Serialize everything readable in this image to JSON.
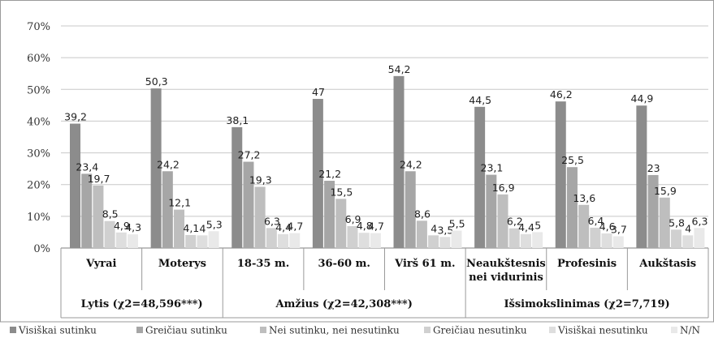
{
  "chart_data": {
    "type": "bar",
    "y_unit": "%",
    "ylim": [
      0,
      70
    ],
    "y_ticks": [
      "0%",
      "10%",
      "20%",
      "30%",
      "40%",
      "50%",
      "60%",
      "70%"
    ],
    "grid": true,
    "legend_position": "bottom",
    "categories": [
      "Vyrai",
      "Moterys",
      "18-35 m.",
      "36-60 m.",
      "Virš 61 m.",
      "Neaukštesnis nei vidurinis",
      "Profesinis",
      "Aukštasis"
    ],
    "category_lines": [
      [
        "Vyrai"
      ],
      [
        "Moterys"
      ],
      [
        "18-35 m."
      ],
      [
        "36-60 m."
      ],
      [
        "Virš 61 m."
      ],
      [
        "Neaukštesnis",
        "nei vidurinis"
      ],
      [
        "Profesinis"
      ],
      [
        "Aukštasis"
      ]
    ],
    "groups": [
      {
        "label": "Lytis (χ2=48,596***)",
        "span": [
          0,
          1
        ]
      },
      {
        "label": "Amžius (χ2=42,308***)",
        "span": [
          2,
          4
        ]
      },
      {
        "label": "Išsimokslinimas (χ2=7,719)",
        "span": [
          5,
          7
        ]
      }
    ],
    "series": [
      {
        "name": "Visiškai sutinku",
        "color": "#8c8c8c",
        "values": [
          39.2,
          50.3,
          38.1,
          47,
          54.2,
          44.5,
          46.2,
          44.9
        ],
        "labels": [
          "39,2",
          "50,3",
          "38,1",
          "47",
          "54,2",
          "44,5",
          "46,2",
          "44,9"
        ]
      },
      {
        "name": "Greičiau sutinku",
        "color": "#a6a6a6",
        "values": [
          23.4,
          24.2,
          27.2,
          21.2,
          24.2,
          23.1,
          25.5,
          23
        ],
        "labels": [
          "23,4",
          "24,2",
          "27,2",
          "21,2",
          "24,2",
          "23,1",
          "25,5",
          "23"
        ]
      },
      {
        "name": "Nei sutinku, nei nesutinku",
        "color": "#bebebe",
        "values": [
          19.7,
          12.1,
          19.3,
          15.5,
          8.6,
          16.9,
          13.6,
          15.9
        ],
        "labels": [
          "19,7",
          "12,1",
          "19,3",
          "15,5",
          "8,6",
          "16,9",
          "13,6",
          "15,9"
        ]
      },
      {
        "name": "Greičiau nesutinku",
        "color": "#d0d0d0",
        "values": [
          8.5,
          4.1,
          6.3,
          6.9,
          4,
          6.2,
          6.4,
          5.8
        ],
        "labels": [
          "8,5",
          "4,1",
          "6,3",
          "6,9",
          "4",
          "6,2",
          "6,4",
          "5,8"
        ]
      },
      {
        "name": "Visiškai nesutinku",
        "color": "#dedede",
        "values": [
          4.9,
          4,
          4.4,
          4.8,
          3.5,
          4.4,
          4.6,
          4
        ],
        "labels": [
          "4,9",
          "4",
          "4,4",
          "4,8",
          "3,5",
          "4,4",
          "4,6",
          "4"
        ]
      },
      {
        "name": "N/N",
        "color": "#e9e9e9",
        "values": [
          4.3,
          5.3,
          4.7,
          4.7,
          5.5,
          5,
          3.7,
          6.3
        ],
        "labels": [
          "4,3",
          "5,3",
          "4,7",
          "4,7",
          "5,5",
          "5",
          "3,7",
          "6,3"
        ]
      }
    ]
  }
}
